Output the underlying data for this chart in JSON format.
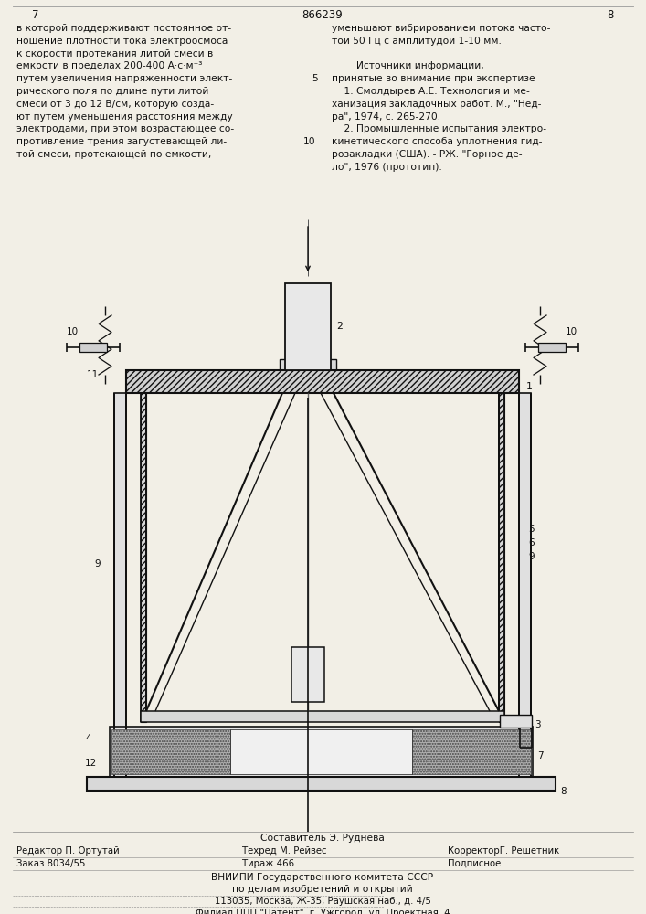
{
  "bg_color": "#f2efe6",
  "page_number_left": "7",
  "page_number_center": "866239",
  "page_number_right": "8",
  "col_left_text": [
    "в которой поддерживают постоянное от-",
    "ношение плотности тока электроосмоса",
    "к скорости протекания литой смеси в",
    "емкости в пределах 200-400 А·с·м⁻³",
    "путем увеличения напряженности элект-",
    "рического поля по длине пути литой",
    "смеси от 3 до 12 В/см, которую созда-",
    "ют путем уменьшения расстояния между",
    "электродами, при этом возрастающее со-",
    "противление трения загустевающей ли-",
    "той смеси, протекающей по емкости,"
  ],
  "col_right_text": [
    "уменьшают вибрированием потока часто-",
    "той 50 Гц с амплитудой 1-10 мм.",
    "",
    "        Источники информации,",
    "принятые во внимание при экспертизе",
    "    1. Смолдырев А.Е. Технология и ме-",
    "ханизация закладочных работ. М., \"Нед-",
    "ра\", 1974, с. 265-270.",
    "    2. Промышленные испытания электро-",
    "кинетического способа уплотнения гид-",
    "розакладки (США). - РЖ. \"Горное де-",
    "ло\", 1976 (прототип)."
  ],
  "line_num_5_row": 4,
  "line_num_10_row": 9,
  "footer_compiler": "Составитель Э. Руднева",
  "footer_editor": "Редактор П. Ортутай",
  "footer_techred": "Техред М. Рейвес",
  "footer_corrector": "КорректорГ. Решетник",
  "footer_order": "Заказ 8034/55",
  "footer_tirazh": "Тираж 466",
  "footer_podpisnoe": "Подписное",
  "footer_vniipи": "ВНИИПИ Государственного комитета СССР",
  "footer_dela": "по делам изобретений и открытий",
  "footer_address": "113035, Москва, Ж-35, Раушская наб., д. 4/5",
  "footer_filial": "Филиал ППП \"Патент\", г. Ужгород, ул. Проектная, 4"
}
